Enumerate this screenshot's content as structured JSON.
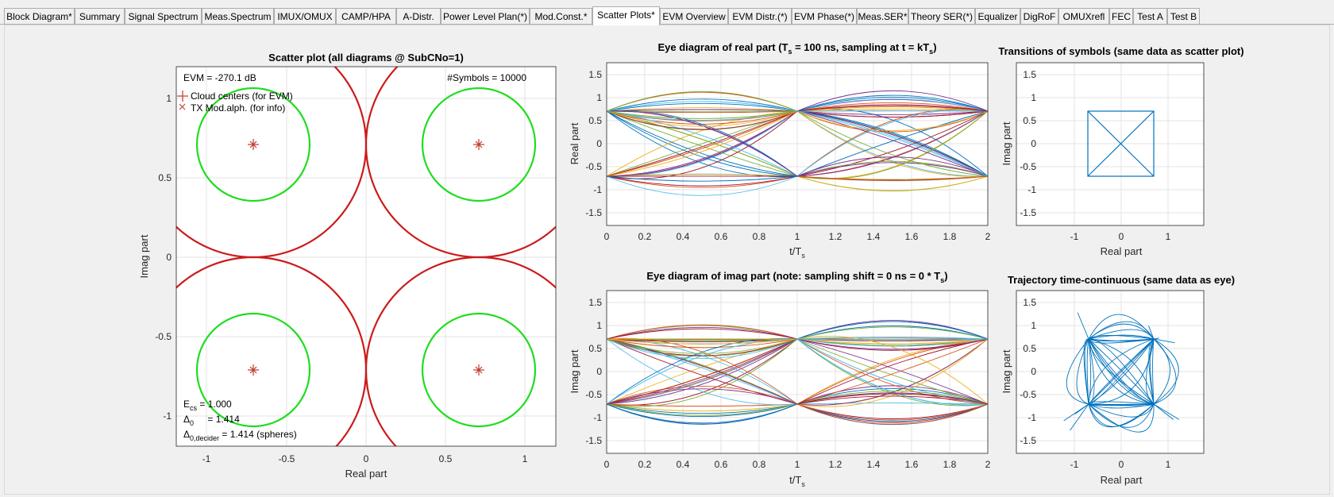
{
  "tabs": [
    {
      "label": "Block Diagram*"
    },
    {
      "label": "Summary"
    },
    {
      "label": "Signal Spectrum"
    },
    {
      "label": "Meas.Spectrum"
    },
    {
      "label": "IMUX/OMUX"
    },
    {
      "label": "CAMP/HPA"
    },
    {
      "label": "A-Distr."
    },
    {
      "label": "Power Level Plan(*)"
    },
    {
      "label": "Mod.Const.*"
    },
    {
      "label": "Scatter Plots*"
    },
    {
      "label": "EVM Overview"
    },
    {
      "label": "EVM Distr.(*)"
    },
    {
      "label": "EVM Phase(*)"
    },
    {
      "label": "Meas.SER*"
    },
    {
      "label": "Theory SER(*)"
    },
    {
      "label": "Equalizer"
    },
    {
      "label": "DigRoF"
    },
    {
      "label": "OMUXrefl"
    },
    {
      "label": "FEC"
    },
    {
      "label": "Test A"
    },
    {
      "label": "Test B"
    }
  ],
  "active_tab": "Scatter Plots*",
  "colors": {
    "ring_red": "#cc1a1a",
    "ring_green": "#1fdd1f",
    "marker": "#c0392b",
    "traj_blue": "#0072bd",
    "grid": "#e2e2e2"
  },
  "scatter": {
    "title": "Scatter plot (all diagrams @ SubCNo=1)",
    "evm": "EVM = -270.1 dB",
    "nsym": "#Symbols = 10000",
    "legend_cloud": "Cloud centers (for EVM)",
    "legend_tx": "TX Mod.alph. (for info)",
    "ecs_main": "E",
    "ecs_sub": "cs",
    "ecs_val": " = 1.000",
    "d0_main": "Δ",
    "d0_sub": "0",
    "d0_val": " = 1.414",
    "dd_main": "Δ",
    "dd_sub": "0,decider",
    "dd_val": " = 1.414 (spheres)",
    "xlabel": "Real part",
    "ylabel": "Imag part",
    "xticks": [
      "-1",
      "-0.5",
      "0",
      "0.5",
      "1"
    ],
    "yticks": [
      "1",
      "0.5",
      "0",
      "-0.5",
      "-1"
    ]
  },
  "eye_real": {
    "title_a": "Eye diagram of real part   (T",
    "title_sub1": "s",
    "title_b": " = 100 ns, sampling at t = kT",
    "title_sub2": "s",
    "title_c": ")",
    "xlabel_main": "t/T",
    "xlabel_sub": "s",
    "ylabel": "Real part",
    "xticks": [
      "0",
      "0.2",
      "0.4",
      "0.6",
      "0.8",
      "1",
      "1.2",
      "1.4",
      "1.6",
      "1.8",
      "2"
    ],
    "yticks": [
      "1.5",
      "1",
      "0.5",
      "0",
      "-0.5",
      "-1",
      "-1.5"
    ]
  },
  "eye_imag": {
    "title_a": "Eye diagram of imag part   (note: sampling shift = 0 ns = 0 * T",
    "title_sub": "s",
    "title_c": ")",
    "xlabel_main": "t/T",
    "xlabel_sub": "s",
    "ylabel": "Imag part",
    "xticks": [
      "0",
      "0.2",
      "0.4",
      "0.6",
      "0.8",
      "1",
      "1.2",
      "1.4",
      "1.6",
      "1.8",
      "2"
    ],
    "yticks": [
      "1.5",
      "1",
      "0.5",
      "0",
      "-0.5",
      "-1",
      "-1.5"
    ]
  },
  "transitions": {
    "title": "Transitions of symbols  (same data as scatter plot)",
    "xlabel": "Real part",
    "ylabel": "Imag part",
    "xticks": [
      "-1",
      "0",
      "1"
    ],
    "yticks": [
      "1.5",
      "1",
      "0.5",
      "0",
      "-0.5",
      "-1",
      "-1.5"
    ]
  },
  "trajectory": {
    "title": "Trajectory time-continuous  (same data as eye)",
    "xlabel": "Real part",
    "ylabel": "Imag part",
    "xticks": [
      "-1",
      "0",
      "1"
    ],
    "yticks": [
      "1.5",
      "1",
      "0.5",
      "0",
      "-0.5",
      "-1",
      "-1.5"
    ]
  }
}
